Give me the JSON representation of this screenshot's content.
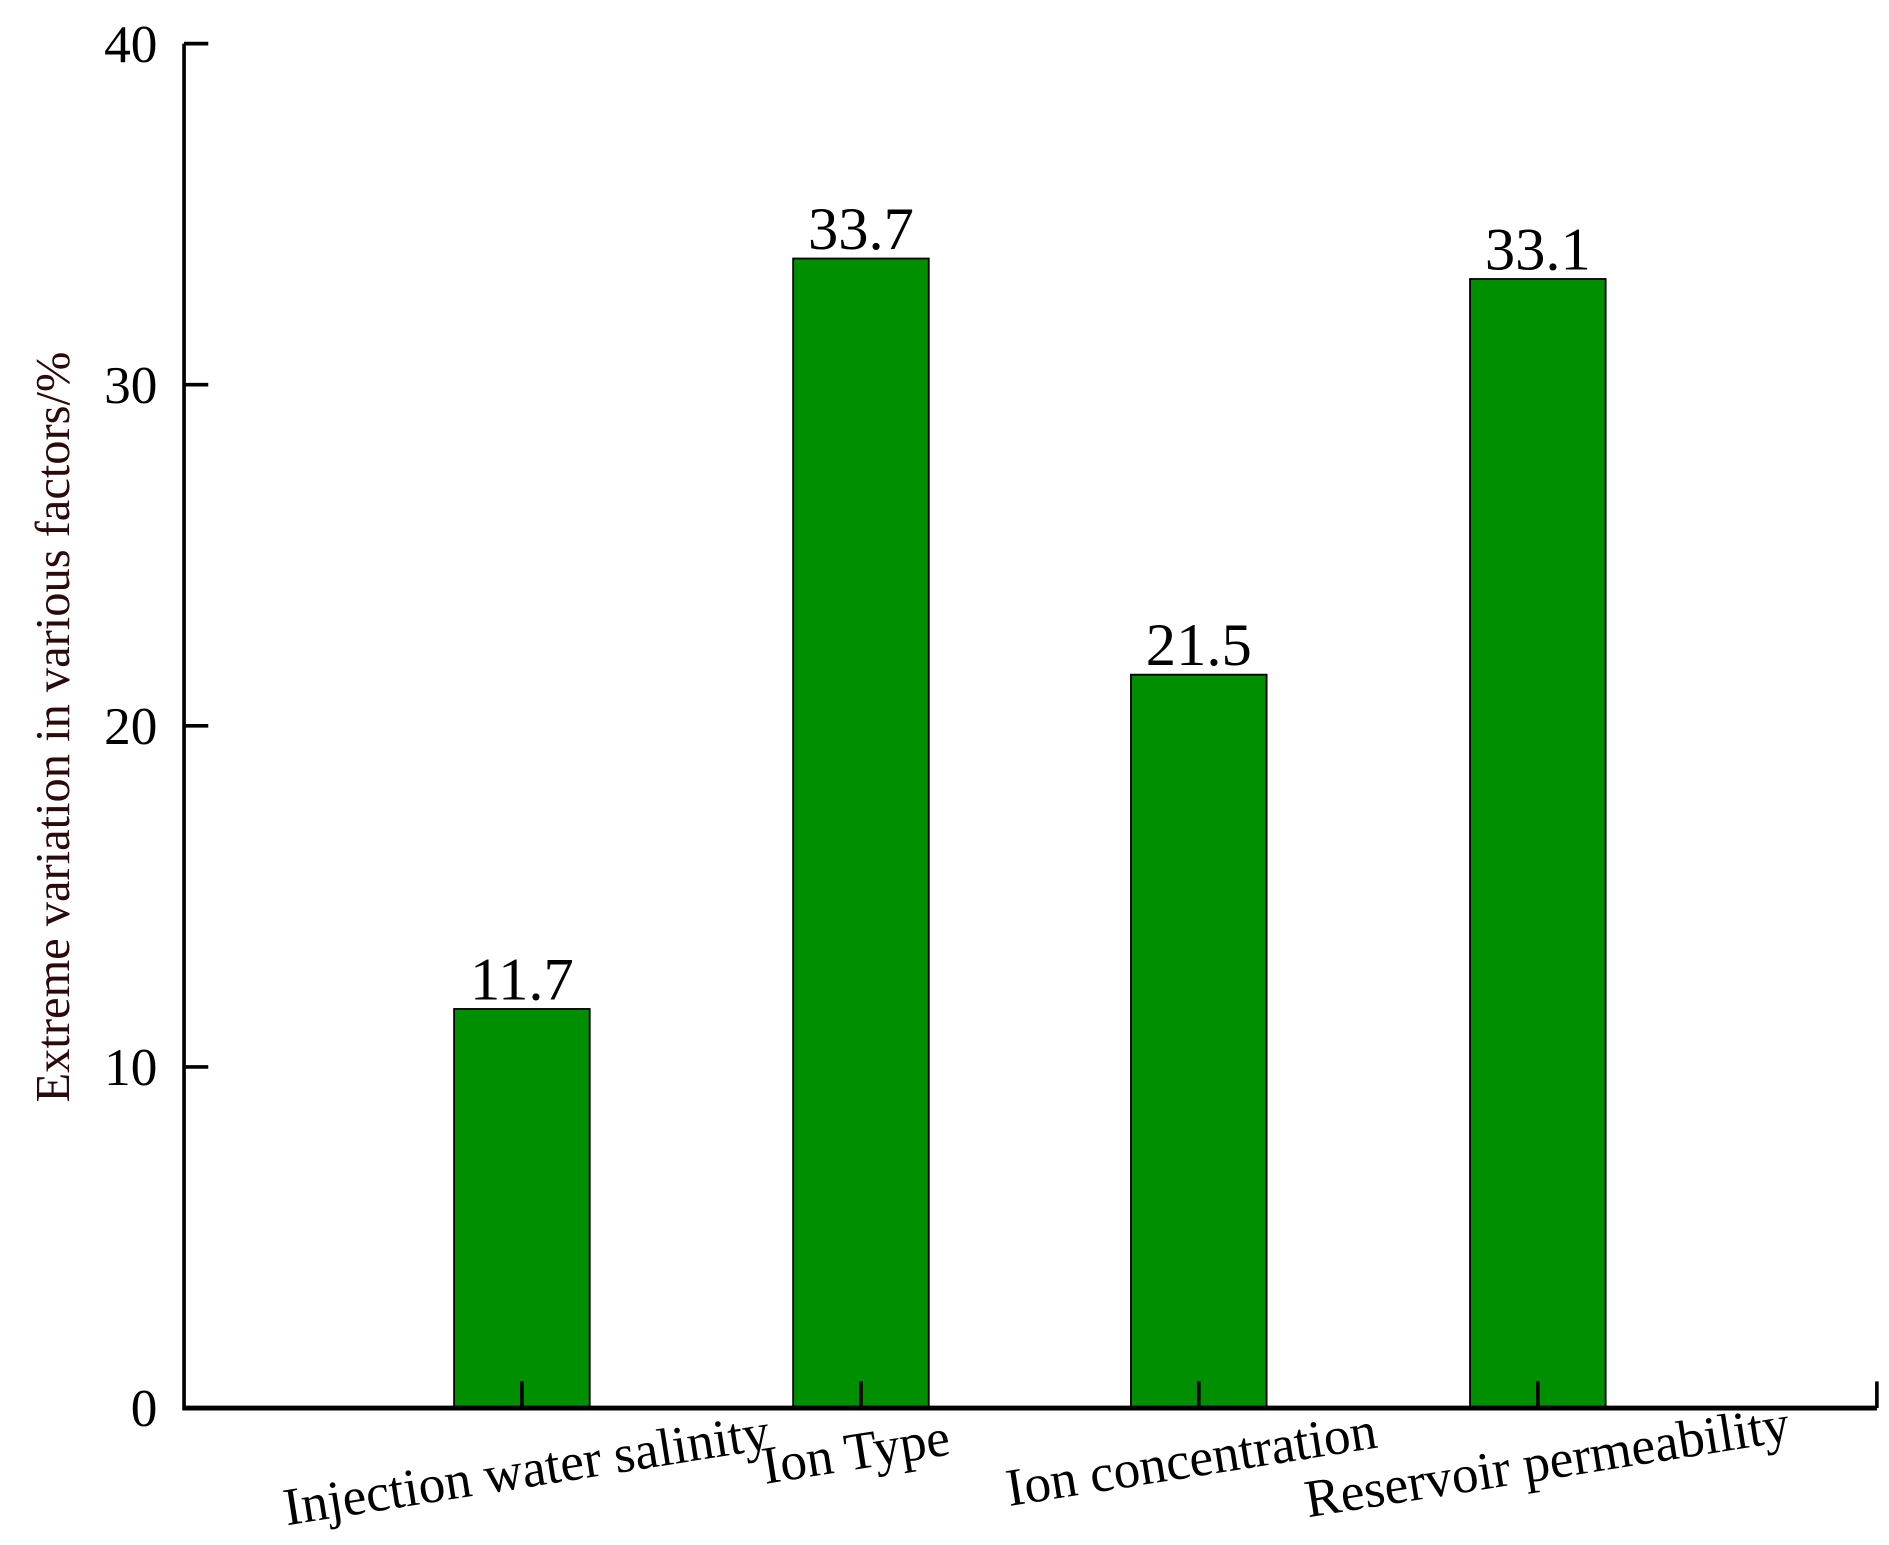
{
  "chart_data": {
    "type": "bar",
    "title": "",
    "xlabel": "",
    "ylabel": "Extreme variation in various factors/%",
    "categories": [
      "Injection water salinity",
      "Ion Type",
      "Ion concentration",
      "Reservoir permeability"
    ],
    "values": [
      11.7,
      33.7,
      21.5,
      33.1
    ],
    "data_labels": [
      "11.7",
      "33.7",
      "21.5",
      "33.1"
    ],
    "ylim": [
      0,
      40
    ],
    "yticks": [
      0,
      10,
      20,
      30,
      40
    ],
    "ytick_labels": [
      "0",
      "10",
      "20",
      "30",
      "40"
    ],
    "grid": false,
    "colors": {
      "bar": "#008f00",
      "axis": "#000000",
      "ylabel": "#2a0a0a"
    }
  }
}
